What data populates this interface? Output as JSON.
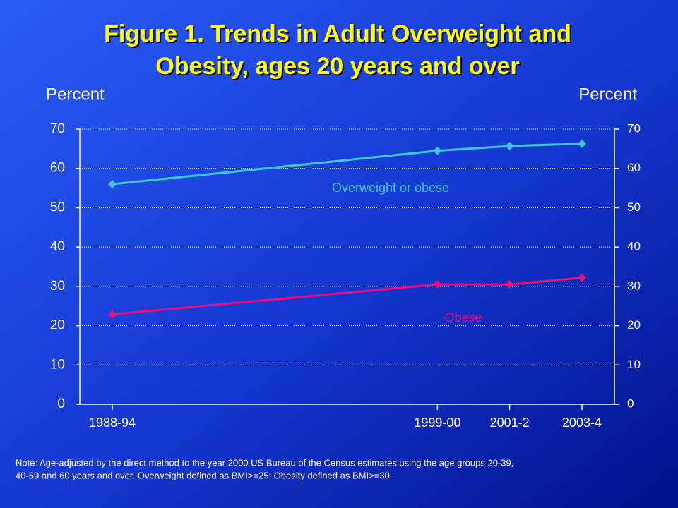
{
  "chart_data": {
    "type": "line",
    "title": [
      "Figure 1. Trends in Adult Overweight and",
      "Obesity, ages 20 years and over"
    ],
    "y_label": "Percent",
    "y2_label": "Percent",
    "x": [
      1990.5,
      1999.5,
      2001.5,
      2003.5
    ],
    "xlim": [
      1989.6,
      2004.4
    ],
    "xticks": [
      {
        "value": 1990.5,
        "label": "1988-94"
      },
      {
        "value": 1999.5,
        "label": "1999-00"
      },
      {
        "value": 2001.5,
        "label": "2001-2"
      },
      {
        "value": 2003.5,
        "label": "2003-4"
      }
    ],
    "ylim": [
      0,
      70
    ],
    "yticks": [
      0,
      10,
      20,
      30,
      40,
      50,
      60,
      70
    ],
    "y2lim": [
      0,
      70
    ],
    "y2ticks": [
      0,
      10,
      20,
      30,
      40,
      50,
      60,
      70
    ],
    "grid": true,
    "series": [
      {
        "name": "Overweight or obese",
        "color": "#3cc8d8",
        "values": [
          56.0,
          64.5,
          65.7,
          66.3
        ]
      },
      {
        "name": "Obese",
        "color": "#e8107a",
        "values": [
          22.9,
          30.5,
          30.5,
          32.2
        ]
      }
    ],
    "note": [
      "Note: Age-adjusted by the direct method to the year 2000 US Bureau of the Census estimates using the age groups 20-39,",
      "40-59 and 60 years and over.  Overweight defined as BMI>=25; Obesity defined as BMI>=30."
    ]
  }
}
